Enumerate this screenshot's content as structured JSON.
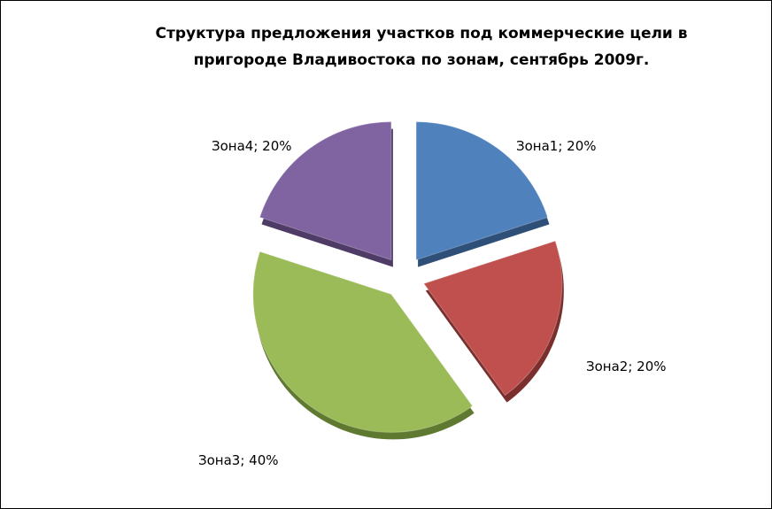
{
  "chart_data": {
    "type": "pie",
    "title": "Структура предложения участков под коммерческие цели в пригороде Владивостока по зонам, сентябрь 2009г.",
    "title_lines": [
      "Структура предложения участков под коммерческие цели в",
      "пригороде Владивостока по зонам, сентябрь 2009г."
    ],
    "categories": [
      "Зона1",
      "Зона2",
      "Зона3",
      "Зона4"
    ],
    "values": [
      20,
      20,
      40,
      20
    ],
    "unit": "%",
    "data_labels": [
      "Зона1; 20%",
      "Зона2; 20%",
      "Зона3; 40%",
      "Зона4; 20%"
    ],
    "colors": [
      "#4F81BD",
      "#C0504D",
      "#9BBB59",
      "#8064A2"
    ],
    "side_colors": [
      "#2E4F78",
      "#7A2F2D",
      "#5F7A30",
      "#4E3B66"
    ],
    "exploded": true,
    "style": "3d",
    "legend": "none"
  }
}
